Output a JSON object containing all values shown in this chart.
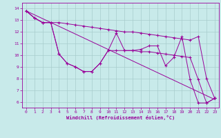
{
  "x": [
    0,
    1,
    2,
    3,
    4,
    5,
    6,
    7,
    8,
    9,
    10,
    11,
    12,
    13,
    14,
    15,
    16,
    17,
    18,
    19,
    20,
    21,
    22,
    23
  ],
  "line_wavy": [
    13.8,
    13.2,
    12.8,
    12.8,
    10.1,
    9.3,
    9.0,
    8.6,
    8.6,
    9.3,
    10.4,
    11.9,
    10.4,
    10.4,
    10.5,
    10.8,
    10.8,
    9.1,
    9.8,
    11.6,
    7.9,
    5.9,
    5.9,
    6.3
  ],
  "line_top": [
    13.8,
    13.2,
    12.8,
    12.8,
    12.8,
    12.7,
    12.6,
    12.5,
    12.4,
    12.3,
    12.2,
    12.1,
    12.0,
    12.0,
    11.9,
    11.8,
    11.7,
    11.6,
    11.5,
    11.4,
    11.3,
    11.6,
    8.0,
    6.3
  ],
  "line_mid": [
    13.8,
    13.2,
    12.8,
    12.8,
    10.1,
    9.3,
    9.0,
    8.6,
    8.6,
    9.3,
    10.4,
    10.4,
    10.4,
    10.4,
    10.3,
    10.3,
    10.2,
    10.1,
    10.0,
    9.9,
    9.8,
    7.9,
    5.9,
    6.3
  ],
  "line_straight": [
    [
      0,
      13.8
    ],
    [
      23,
      6.2
    ]
  ],
  "color": "#990099",
  "bg_color": "#c8eaea",
  "grid_color": "#a8cccc",
  "ylabel_vals": [
    6,
    7,
    8,
    9,
    10,
    11,
    12,
    13,
    14
  ],
  "xlabel_vals": [
    0,
    1,
    2,
    3,
    4,
    5,
    6,
    7,
    8,
    9,
    10,
    11,
    12,
    13,
    14,
    15,
    16,
    17,
    18,
    19,
    20,
    21,
    22,
    23
  ],
  "xlabel": "Windchill (Refroidissement éolien,°C)",
  "ylim": [
    5.5,
    14.5
  ],
  "xlim": [
    -0.5,
    23.5
  ]
}
